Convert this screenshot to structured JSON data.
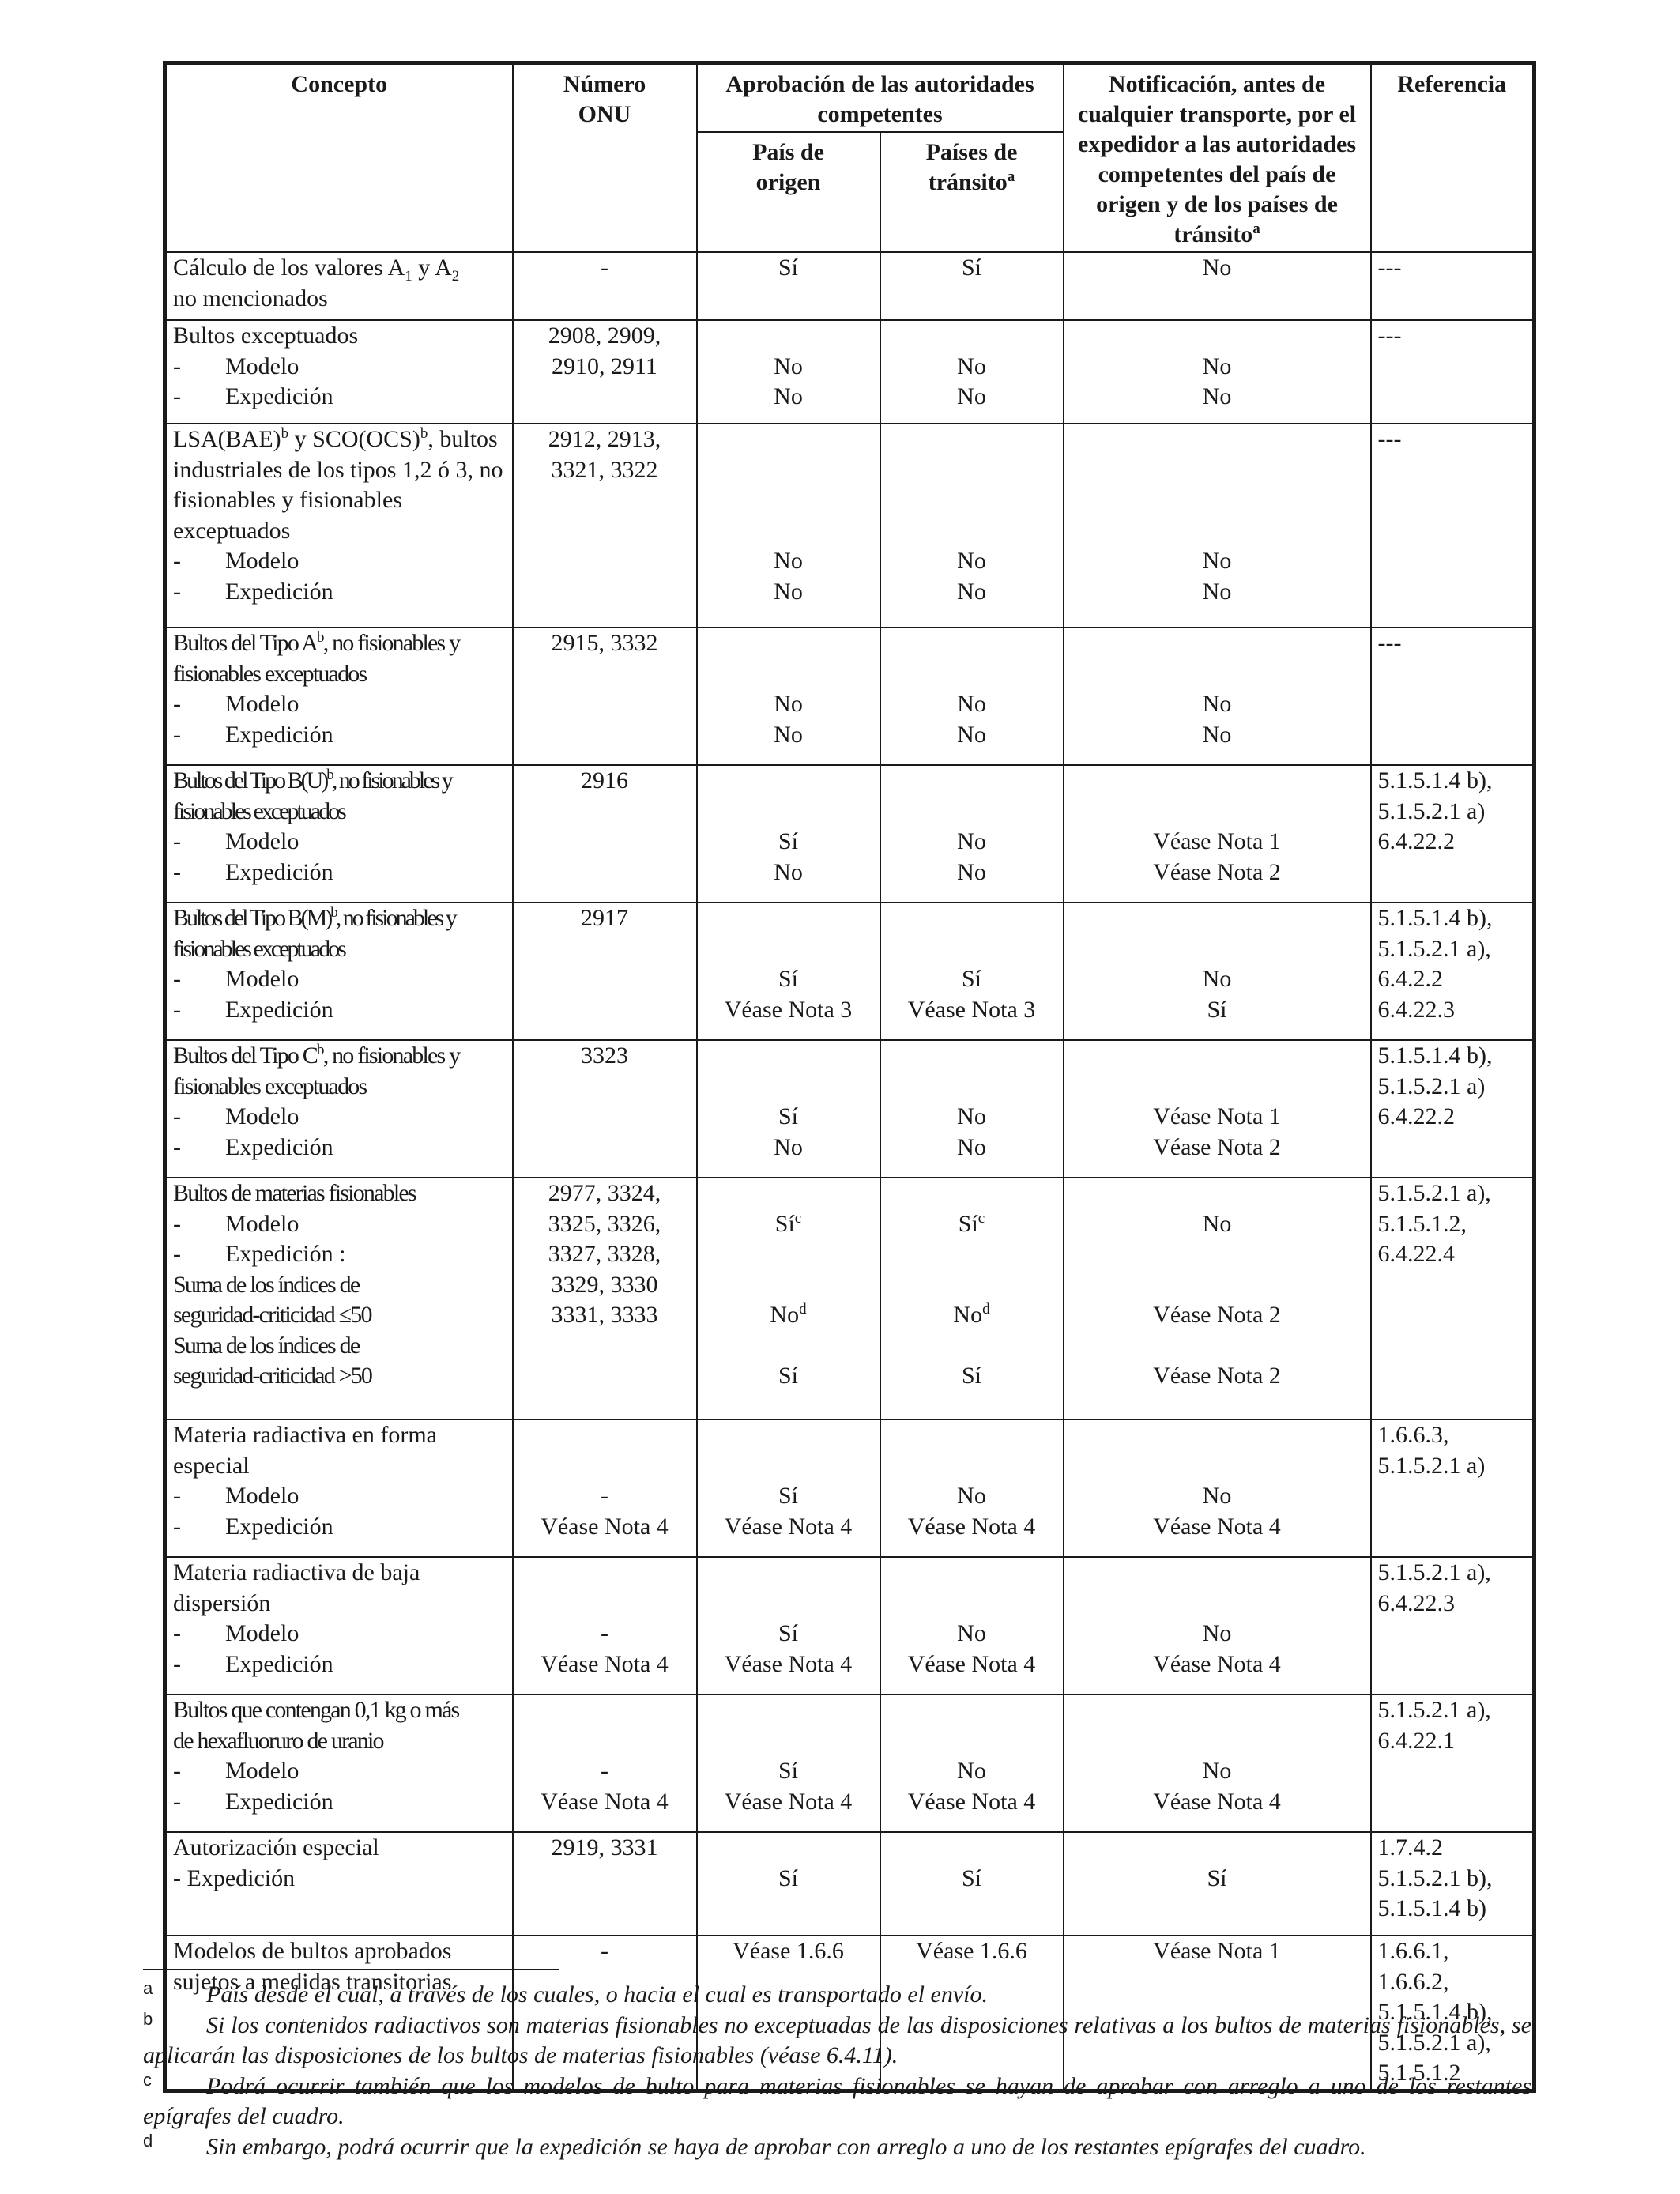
{
  "table": {
    "headers": {
      "concepto": "Concepto",
      "numero_onu": "Número ONU",
      "aprobacion": "Aprobación de las autoridades competentes",
      "pais_origen": "País de origen",
      "paises_transito": "Países de tránsito",
      "paises_transito_sup": "a",
      "notificacion": "Notificación, antes de cualquier transporte, por el expedidor a las autoridades competentes del país de origen y de los países de tránsito",
      "notificacion_sup": "a",
      "referencia": "Referencia"
    },
    "rows": [
      {
        "concept": [
          "Cálculo de los valores A1 y A2",
          "no mencionados"
        ],
        "un": [
          "-"
        ],
        "origin": [
          "Sí"
        ],
        "transit": [
          "Sí"
        ],
        "notif": [
          "No"
        ],
        "ref": [
          "---"
        ]
      },
      {
        "concept": [
          "Bultos exceptuados",
          "-\tModelo",
          "-\tExpedición"
        ],
        "un": [
          "2908, 2909,",
          "2910, 2911"
        ],
        "origin": [
          "",
          "No",
          "No"
        ],
        "transit": [
          "",
          "No",
          "No"
        ],
        "notif": [
          "",
          "No",
          "No"
        ],
        "ref": [
          "---"
        ]
      },
      {
        "concept": [
          "LSA(BAE)b y SCO(OCS)b, bultos",
          "industriales de los tipos 1,2 ó 3, no",
          "fisionables y fisionables",
          "exceptuados",
          "-\tModelo",
          "-\tExpedición"
        ],
        "un": [
          "2912, 2913,",
          "3321, 3322"
        ],
        "origin": [
          "",
          "",
          "",
          "",
          "No",
          "No"
        ],
        "transit": [
          "",
          "",
          "",
          "",
          "No",
          "No"
        ],
        "notif": [
          "",
          "",
          "",
          "",
          "No",
          "No"
        ],
        "ref": [
          "---"
        ]
      },
      {
        "concept": [
          "Bultos del Tipo Ab, no fisionables y",
          "fisionables exceptuados",
          "-\tModelo",
          "-\tExpedición"
        ],
        "un": [
          "2915, 3332"
        ],
        "origin": [
          "",
          "",
          "No",
          "No"
        ],
        "transit": [
          "",
          "",
          "No",
          "No"
        ],
        "notif": [
          "",
          "",
          "No",
          "No"
        ],
        "ref": [
          "---"
        ]
      },
      {
        "concept": [
          "Bultos del Tipo B(U)b, no fisionables y",
          "fisionables exceptuados",
          "-\tModelo",
          "-\tExpedición"
        ],
        "un": [
          "2916"
        ],
        "origin": [
          "",
          "",
          "Sí",
          "No"
        ],
        "transit": [
          "",
          "",
          "No",
          "No"
        ],
        "notif": [
          "",
          "",
          "Véase Nota 1",
          "Véase Nota 2"
        ],
        "ref": [
          "5.1.5.1.4 b),",
          "5.1.5.2.1 a)",
          "6.4.22.2"
        ]
      },
      {
        "concept": [
          "Bultos del Tipo B(M)b, no fisionables y",
          "fisionables exceptuados",
          "-\tModelo",
          "-\tExpedición"
        ],
        "un": [
          "2917"
        ],
        "origin": [
          "",
          "",
          "Sí",
          "Véase Nota 3"
        ],
        "transit": [
          "",
          "",
          "Sí",
          "Véase Nota 3"
        ],
        "notif": [
          "",
          "",
          "No",
          "Sí"
        ],
        "ref": [
          "5.1.5.1.4 b),",
          "5.1.5.2.1 a),",
          "6.4.2.2",
          "6.4.22.3"
        ]
      },
      {
        "concept": [
          "Bultos del Tipo Cb, no fisionables y",
          "fisionables exceptuados",
          "-\tModelo",
          "-\tExpedición"
        ],
        "un": [
          "3323"
        ],
        "origin": [
          "",
          "",
          "Sí",
          "No"
        ],
        "transit": [
          "",
          "",
          "No",
          "No"
        ],
        "notif": [
          "",
          "",
          "Véase Nota 1",
          "Véase Nota 2"
        ],
        "ref": [
          "5.1.5.1.4 b),",
          "5.1.5.2.1 a)",
          "6.4.22.2"
        ]
      },
      {
        "concept": [
          "Bultos de materias fisionables",
          "-\tModelo",
          "-\tExpedición :",
          "Suma de los índices de",
          "seguridad-criticidad ≤50",
          "Suma de los índices de",
          "seguridad-criticidad >50"
        ],
        "un": [
          "2977, 3324,",
          "3325, 3326,",
          "3327, 3328,",
          "3329, 3330",
          "3331, 3333"
        ],
        "origin": [
          "",
          "Síc",
          "",
          "",
          "Nod",
          "",
          "Sí"
        ],
        "transit": [
          "",
          "Síc",
          "",
          "",
          "Nod",
          "",
          "Sí"
        ],
        "notif": [
          "",
          "No",
          "",
          "",
          "Véase Nota 2",
          "",
          "Véase Nota 2"
        ],
        "ref": [
          "5.1.5.2.1 a),",
          "5.1.5.1.2,",
          "6.4.22.4"
        ]
      },
      {
        "concept": [
          "Materia radiactiva en forma",
          "especial",
          "-\tModelo",
          "-\tExpedición"
        ],
        "un": [
          "",
          "",
          "-",
          "Véase Nota 4"
        ],
        "origin": [
          "",
          "",
          "Sí",
          "Véase Nota 4"
        ],
        "transit": [
          "",
          "",
          "No",
          "Véase Nota 4"
        ],
        "notif": [
          "",
          "",
          "No",
          "Véase Nota 4"
        ],
        "ref": [
          "1.6.6.3,",
          "5.1.5.2.1 a)"
        ]
      },
      {
        "concept": [
          "Materia radiactiva de baja",
          "dispersión",
          "-\tModelo",
          "-\tExpedición"
        ],
        "un": [
          "",
          "",
          "-",
          "Véase Nota 4"
        ],
        "origin": [
          "",
          "",
          "Sí",
          "Véase Nota 4"
        ],
        "transit": [
          "",
          "",
          "No",
          "Véase Nota 4"
        ],
        "notif": [
          "",
          "",
          "No",
          "Véase Nota 4"
        ],
        "ref": [
          "5.1.5.2.1 a),",
          "6.4.22.3"
        ]
      },
      {
        "concept": [
          "Bultos que contengan 0,1 kg o más",
          "de hexafluoruro de uranio",
          "-\tModelo",
          "-\tExpedición"
        ],
        "un": [
          "",
          "",
          "-",
          "Véase Nota 4"
        ],
        "origin": [
          "",
          "",
          "Sí",
          "Véase Nota 4"
        ],
        "transit": [
          "",
          "",
          "No",
          "Véase Nota 4"
        ],
        "notif": [
          "",
          "",
          "No",
          "Véase Nota 4"
        ],
        "ref": [
          "5.1.5.2.1 a),",
          "6.4.22.1"
        ]
      },
      {
        "concept": [
          "Autorización especial",
          " - Expedición"
        ],
        "un": [
          "2919, 3331"
        ],
        "origin": [
          "",
          "Sí"
        ],
        "transit": [
          "",
          "Sí"
        ],
        "notif": [
          "",
          "Sí"
        ],
        "ref": [
          "1.7.4.2",
          "5.1.5.2.1 b),",
          "5.1.5.1.4 b)"
        ]
      },
      {
        "concept": [
          "Modelos de bultos aprobados",
          "sujetos a medidas transitorias"
        ],
        "un": [
          "-"
        ],
        "origin": [
          "Véase 1.6.6"
        ],
        "transit": [
          "Véase 1.6.6"
        ],
        "notif": [
          "Véase Nota 1"
        ],
        "ref": [
          "1.6.6.1,",
          "1.6.6.2,",
          "5.1.5.1.4 b),",
          "5.1.5.2.1 a),",
          "5.1.5.1.2"
        ]
      }
    ]
  },
  "footnotes": [
    {
      "mark": "a",
      "text": "País desde el cual, a través de los cuales, o hacia el cual es transportado el envío."
    },
    {
      "mark": "b",
      "text": "Si los contenidos radiactivos son materias fisionables no exceptuadas de las disposiciones relativas a los bultos de materias fisionables, se aplicarán las disposiciones de los bultos de materias fisionables (véase 6.4.11)."
    },
    {
      "mark": "c",
      "text": "Podrá ocurrir también que los modelos de bulto para materias fisionables se hayan de aprobar con arreglo a uno de los restantes epígrafes del cuadro."
    },
    {
      "mark": "d",
      "text": "Sin embargo, podrá ocurrir que la expedición se haya de aprobar con arreglo a uno de los restantes epígrafes del cuadro."
    }
  ]
}
